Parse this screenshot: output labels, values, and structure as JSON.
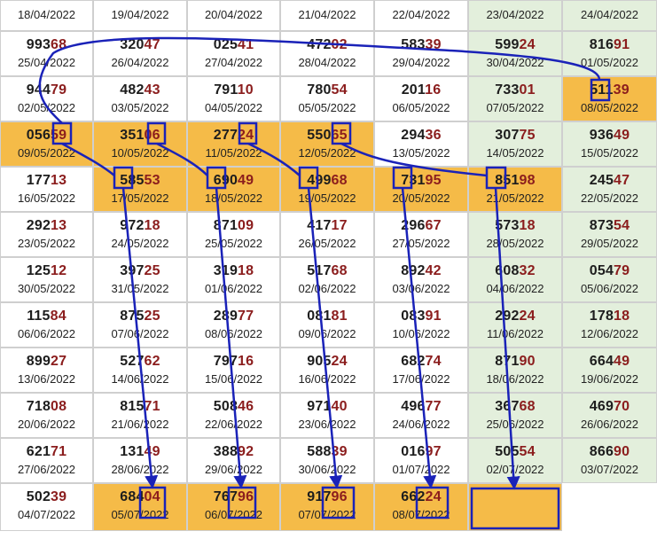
{
  "headers": [
    "18/04/2022",
    "19/04/2022",
    "20/04/2022",
    "21/04/2022",
    "22/04/2022",
    "23/04/2022",
    "24/04/2022"
  ],
  "rows": [
    [
      {
        "a": "993",
        "b": "68",
        "date": "25/04/2022"
      },
      {
        "a": "320",
        "b": "47",
        "date": "26/04/2022"
      },
      {
        "a": "025",
        "b": "41",
        "date": "27/04/2022"
      },
      {
        "a": "472",
        "b": "02",
        "date": "28/04/2022"
      },
      {
        "a": "583",
        "b": "39",
        "date": "29/04/2022"
      },
      {
        "a": "599",
        "b": "24",
        "date": "30/04/2022"
      },
      {
        "a": "816",
        "b": "91",
        "date": "01/05/2022"
      }
    ],
    [
      {
        "a": "944",
        "b": "79",
        "date": "02/05/2022"
      },
      {
        "a": "482",
        "b": "43",
        "date": "03/05/2022"
      },
      {
        "a": "791",
        "b": "10",
        "date": "04/05/2022"
      },
      {
        "a": "780",
        "b": "54",
        "date": "05/05/2022"
      },
      {
        "a": "201",
        "b": "16",
        "date": "06/05/2022"
      },
      {
        "a": "733",
        "b": "01",
        "date": "07/05/2022"
      },
      {
        "a": "511",
        "b": "39",
        "date": "08/05/2022",
        "hl": true
      }
    ],
    [
      {
        "a": "056",
        "b": "59",
        "date": "09/05/2022",
        "hl": true
      },
      {
        "a": "351",
        "b": "06",
        "date": "10/05/2022",
        "hl": true
      },
      {
        "a": "277",
        "b": "24",
        "date": "11/05/2022",
        "hl": true
      },
      {
        "a": "550",
        "b": "65",
        "date": "12/05/2022",
        "hl": true
      },
      {
        "a": "294",
        "b": "36",
        "date": "13/05/2022"
      },
      {
        "a": "307",
        "b": "75",
        "date": "14/05/2022"
      },
      {
        "a": "936",
        "b": "49",
        "date": "15/05/2022"
      }
    ],
    [
      {
        "a": "177",
        "b": "13",
        "date": "16/05/2022"
      },
      {
        "a": "585",
        "b": "53",
        "date": "17/05/2022",
        "hl": true
      },
      {
        "a": "690",
        "b": "49",
        "date": "18/05/2022",
        "hl": true
      },
      {
        "a": "499",
        "b": "68",
        "date": "19/05/2022",
        "hl": true
      },
      {
        "a": "731",
        "b": "95",
        "date": "20/05/2022",
        "hl": true
      },
      {
        "a": "851",
        "b": "98",
        "date": "21/05/2022",
        "hl": true
      },
      {
        "a": "245",
        "b": "47",
        "date": "22/05/2022"
      }
    ],
    [
      {
        "a": "292",
        "b": "13",
        "date": "23/05/2022"
      },
      {
        "a": "972",
        "b": "18",
        "date": "24/05/2022"
      },
      {
        "a": "871",
        "b": "09",
        "date": "25/05/2022"
      },
      {
        "a": "417",
        "b": "17",
        "date": "26/05/2022"
      },
      {
        "a": "296",
        "b": "67",
        "date": "27/05/2022"
      },
      {
        "a": "573",
        "b": "18",
        "date": "28/05/2022"
      },
      {
        "a": "873",
        "b": "54",
        "date": "29/05/2022"
      }
    ],
    [
      {
        "a": "125",
        "b": "12",
        "date": "30/05/2022"
      },
      {
        "a": "397",
        "b": "25",
        "date": "31/05/2022"
      },
      {
        "a": "319",
        "b": "18",
        "date": "01/06/2022"
      },
      {
        "a": "517",
        "b": "68",
        "date": "02/06/2022"
      },
      {
        "a": "892",
        "b": "42",
        "date": "03/06/2022"
      },
      {
        "a": "608",
        "b": "32",
        "date": "04/06/2022"
      },
      {
        "a": "054",
        "b": "79",
        "date": "05/06/2022"
      }
    ],
    [
      {
        "a": "115",
        "b": "84",
        "date": "06/06/2022"
      },
      {
        "a": "875",
        "b": "25",
        "date": "07/06/2022"
      },
      {
        "a": "289",
        "b": "77",
        "date": "08/06/2022"
      },
      {
        "a": "081",
        "b": "81",
        "date": "09/06/2022"
      },
      {
        "a": "083",
        "b": "91",
        "date": "10/06/2022"
      },
      {
        "a": "292",
        "b": "24",
        "date": "11/06/2022"
      },
      {
        "a": "178",
        "b": "18",
        "date": "12/06/2022"
      }
    ],
    [
      {
        "a": "899",
        "b": "27",
        "date": "13/06/2022"
      },
      {
        "a": "527",
        "b": "62",
        "date": "14/06/2022"
      },
      {
        "a": "797",
        "b": "16",
        "date": "15/06/2022"
      },
      {
        "a": "905",
        "b": "24",
        "date": "16/06/2022"
      },
      {
        "a": "682",
        "b": "74",
        "date": "17/06/2022"
      },
      {
        "a": "871",
        "b": "90",
        "date": "18/06/2022"
      },
      {
        "a": "664",
        "b": "49",
        "date": "19/06/2022"
      }
    ],
    [
      {
        "a": "718",
        "b": "08",
        "date": "20/06/2022"
      },
      {
        "a": "815",
        "b": "71",
        "date": "21/06/2022"
      },
      {
        "a": "508",
        "b": "46",
        "date": "22/06/2022"
      },
      {
        "a": "971",
        "b": "40",
        "date": "23/06/2022"
      },
      {
        "a": "496",
        "b": "77",
        "date": "24/06/2022"
      },
      {
        "a": "367",
        "b": "68",
        "date": "25/06/2022"
      },
      {
        "a": "469",
        "b": "70",
        "date": "26/06/2022"
      }
    ],
    [
      {
        "a": "621",
        "b": "71",
        "date": "27/06/2022"
      },
      {
        "a": "131",
        "b": "49",
        "date": "28/06/2022"
      },
      {
        "a": "388",
        "b": "92",
        "date": "29/06/2022"
      },
      {
        "a": "588",
        "b": "39",
        "date": "30/06/2022"
      },
      {
        "a": "016",
        "b": "97",
        "date": "01/07/2022"
      },
      {
        "a": "505",
        "b": "54",
        "date": "02/07/2022"
      },
      {
        "a": "866",
        "b": "90",
        "date": "03/07/2022"
      }
    ],
    [
      {
        "a": "502",
        "b": "39",
        "date": "04/07/2022"
      },
      {
        "a": "684",
        "b": "04",
        "date": "05/07/2022",
        "hl": true
      },
      {
        "a": "767",
        "b": "96",
        "date": "06/07/2022",
        "hl": true
      },
      {
        "a": "917",
        "b": "96",
        "date": "07/07/2022",
        "hl": true
      },
      {
        "a": "662",
        "b": "24",
        "date": "08/07/2022",
        "hl": true
      },
      {
        "a": "",
        "b": "",
        "date": "",
        "hl": true
      },
      null
    ]
  ],
  "colors": {
    "highlight": "#f5bb48",
    "green_column": "#e3efdc",
    "arrow": "#1a22b8",
    "digit_dark": "#1d1d1d",
    "digit_red": "#8b1d1d"
  }
}
